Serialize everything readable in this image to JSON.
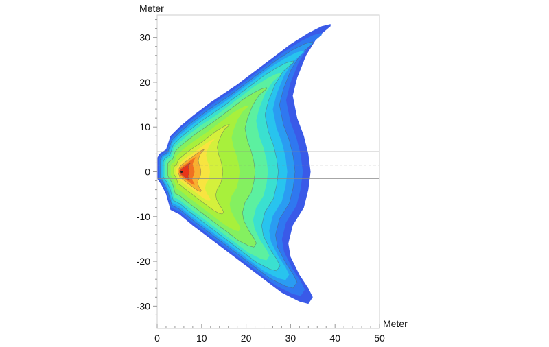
{
  "chart_data": {
    "type": "heatmap",
    "subtype": "filled-contour",
    "title": "",
    "xlabel": "Meter",
    "ylabel": "Meter",
    "xlim": [
      0,
      50
    ],
    "ylim": [
      -35,
      35
    ],
    "xticks": [
      "0",
      "10",
      "20",
      "30",
      "40",
      "50"
    ],
    "yticks": [
      "30",
      "20",
      "10",
      "0",
      "-10",
      "-20",
      "-30"
    ],
    "grid": false,
    "peak": [
      5.5,
      0
    ],
    "outline": [
      [
        0,
        3
      ],
      [
        0.5,
        4
      ],
      [
        2,
        5
      ],
      [
        3,
        8
      ],
      [
        5,
        10
      ],
      [
        8,
        12.5
      ],
      [
        12,
        15.5
      ],
      [
        15,
        17.5
      ],
      [
        18,
        19.5
      ],
      [
        22,
        22.5
      ],
      [
        26,
        25.5
      ],
      [
        30,
        28.5
      ],
      [
        34,
        31
      ],
      [
        37,
        32.5
      ],
      [
        39,
        33
      ],
      [
        39,
        32.5
      ],
      [
        36,
        30
      ],
      [
        33.5,
        26
      ],
      [
        31.5,
        21
      ],
      [
        30.5,
        17
      ],
      [
        31.5,
        12
      ],
      [
        33,
        8
      ],
      [
        34,
        4
      ],
      [
        34.5,
        0
      ],
      [
        34,
        -4
      ],
      [
        33,
        -8
      ],
      [
        30.5,
        -12
      ],
      [
        29.5,
        -16
      ],
      [
        30,
        -19
      ],
      [
        32,
        -23
      ],
      [
        34,
        -26
      ],
      [
        35,
        -28
      ],
      [
        34,
        -29.5
      ],
      [
        32,
        -29
      ],
      [
        28,
        -27
      ],
      [
        24,
        -24
      ],
      [
        20,
        -21
      ],
      [
        16,
        -18
      ],
      [
        12,
        -15
      ],
      [
        8,
        -12
      ],
      [
        5,
        -9.5
      ],
      [
        3,
        -8.5
      ],
      [
        2,
        -5
      ],
      [
        1,
        -3
      ],
      [
        0,
        -1.5
      ]
    ],
    "color_scale": [
      "#3a5ae8",
      "#2f78f0",
      "#2a9cf2",
      "#28c4ee",
      "#3ae0d0",
      "#5cf0a0",
      "#84f060",
      "#a8f03c",
      "#d4f03c",
      "#f8e440",
      "#f8b030",
      "#f07020",
      "#e83418"
    ],
    "horizontal_lines": [
      {
        "y": 4.5,
        "style": "solid"
      },
      {
        "y": 1.5,
        "style": "dashed"
      },
      {
        "y": -1.5,
        "style": "solid"
      }
    ]
  }
}
